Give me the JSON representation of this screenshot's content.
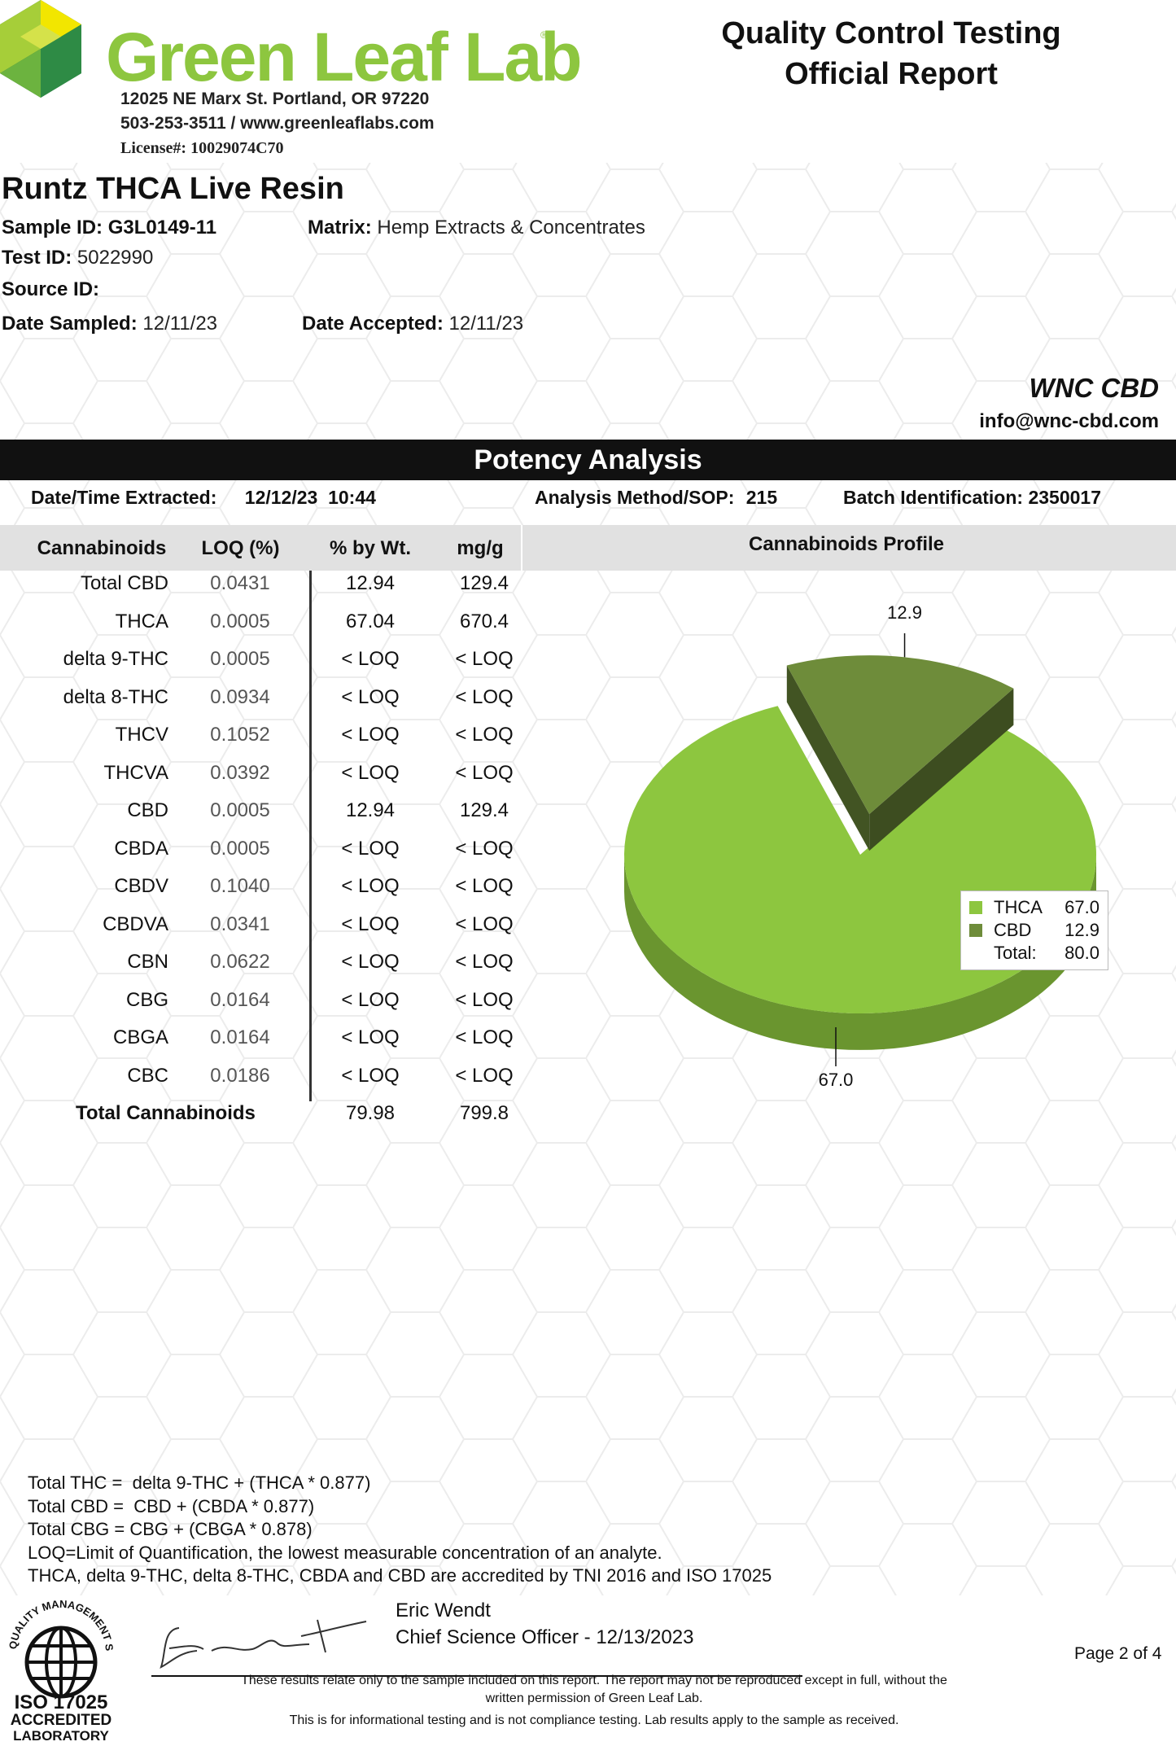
{
  "header": {
    "logo_text": "Green Leaf Lab",
    "address": "12025 NE Marx St. Portland, OR 97220",
    "contact": "503-253-3511 / www.greenleaflabs.com",
    "license": "License#: 10029074C70",
    "report_title_1": "Quality Control Testing",
    "report_title_2": "Official Report"
  },
  "sample": {
    "product_name": "Runtz THCA Live Resin",
    "sample_id_label": "Sample ID:",
    "sample_id": "G3L0149-11",
    "matrix_label": "Matrix:",
    "matrix": "Hemp Extracts & Concentrates",
    "test_id_label": "Test ID:",
    "test_id": "5022990",
    "source_id_label": "Source ID:",
    "date_sampled_label": "Date Sampled:",
    "date_sampled": "12/11/23",
    "date_accepted_label": "Date Accepted:",
    "date_accepted": "12/11/23"
  },
  "client": {
    "name": "WNC CBD",
    "email": "info@wnc-cbd.com"
  },
  "potency": {
    "section_title": "Potency Analysis",
    "extracted_label": "Date/Time Extracted:",
    "extracted_value": "12/12/23  10:44",
    "method_label": "Analysis Method/SOP:",
    "method_value": "215",
    "batch_label": "Batch Identification:",
    "batch_value": "2350017",
    "columns": [
      "Cannabinoids",
      "LOQ (%)",
      "% by Wt.",
      "mg/g"
    ],
    "rows": [
      {
        "name": "Total CBD",
        "loq": "0.0431",
        "pct": "12.94",
        "mg": "129.4"
      },
      {
        "name": "THCA",
        "loq": "0.0005",
        "pct": "67.04",
        "mg": "670.4"
      },
      {
        "name": "delta 9-THC",
        "loq": "0.0005",
        "pct": "< LOQ",
        "mg": "< LOQ"
      },
      {
        "name": "delta 8-THC",
        "loq": "0.0934",
        "pct": "< LOQ",
        "mg": "< LOQ"
      },
      {
        "name": "THCV",
        "loq": "0.1052",
        "pct": "< LOQ",
        "mg": "< LOQ"
      },
      {
        "name": "THCVA",
        "loq": "0.0392",
        "pct": "< LOQ",
        "mg": "< LOQ"
      },
      {
        "name": "CBD",
        "loq": "0.0005",
        "pct": "12.94",
        "mg": "129.4"
      },
      {
        "name": "CBDA",
        "loq": "0.0005",
        "pct": "< LOQ",
        "mg": "< LOQ"
      },
      {
        "name": "CBDV",
        "loq": "0.1040",
        "pct": "< LOQ",
        "mg": "< LOQ"
      },
      {
        "name": "CBDVA",
        "loq": "0.0341",
        "pct": "< LOQ",
        "mg": "< LOQ"
      },
      {
        "name": "CBN",
        "loq": "0.0622",
        "pct": "< LOQ",
        "mg": "< LOQ"
      },
      {
        "name": "CBG",
        "loq": "0.0164",
        "pct": "< LOQ",
        "mg": "< LOQ"
      },
      {
        "name": "CBGA",
        "loq": "0.0164",
        "pct": "< LOQ",
        "mg": "< LOQ"
      },
      {
        "name": "CBC",
        "loq": "0.0186",
        "pct": "< LOQ",
        "mg": "< LOQ"
      }
    ],
    "total_label": "Total Cannabinoids",
    "total_pct": "79.98",
    "total_mg": "799.8"
  },
  "chart_data": {
    "type": "pie",
    "title": "Cannabinoids Profile",
    "categories": [
      "THCA",
      "CBD"
    ],
    "values": [
      67.0,
      12.9
    ],
    "value_labels": [
      "67.0",
      "12.9"
    ],
    "colors": [
      "#8dc63f",
      "#6e8c3a"
    ],
    "legend_total_label": "Total:",
    "legend_total_value": "80.0",
    "legend_position": "right"
  },
  "footnotes": [
    "Total THC =  delta 9-THC + (THCA * 0.877)",
    "Total CBD =  CBD + (CBDA * 0.877)",
    "Total CBG = CBG + (CBGA * 0.878)",
    "LOQ=Limit of Quantification, the lowest measurable concentration of an analyte.",
    "THCA, delta 9-THC, delta 8-THC, CBDA and CBD are accredited by TNI 2016 and ISO 17025"
  ],
  "signature": {
    "name": "Eric Wendt",
    "title": "Chief Science Officer - 12/13/2023"
  },
  "disclaimer": {
    "line1": "These results relate only to the sample included on this report. The report may not be reproduced except in full, without the",
    "line2": "written permission of Green Leaf Lab.",
    "line3": "This is for informational testing and is not compliance testing. Lab results apply to the sample as received."
  },
  "page": "Page 2 of 4",
  "iso": {
    "ring_text": "QUALITY MANAGEMENT SYSTEM",
    "line1": "ISO 17025",
    "line2": "ACCREDITED",
    "line3": "LABORATORY"
  }
}
